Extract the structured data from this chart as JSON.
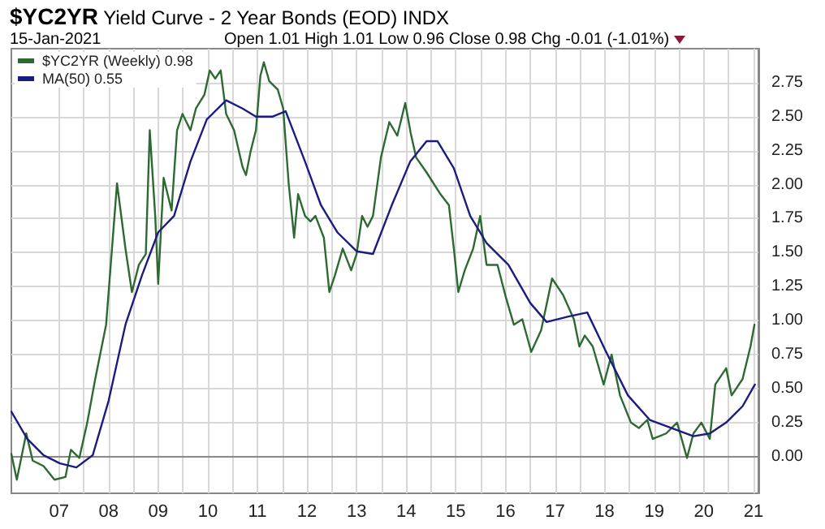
{
  "chart_data": {
    "type": "line",
    "title": "$YC2YR Yield Curve - 2 Year Bonds (EOD) INDX",
    "subtitle": "15-Jan-2021",
    "annotations": [
      "Open 1.01 High 1.01 Low 0.96 Close 0.98 Chg -0.01 (-1.01%)"
    ],
    "series": [
      {
        "name": "$YC2YR (Weekly) 0.98",
        "color": "#2d6a32",
        "x": [
          2006.04,
          2006.15,
          2006.34,
          2006.47,
          2006.69,
          2006.91,
          2007.13,
          2007.24,
          2007.41,
          2007.57,
          2007.73,
          2007.95,
          2008.06,
          2008.17,
          2008.34,
          2008.47,
          2008.61,
          2008.75,
          2008.83,
          2008.94,
          2009.0,
          2009.11,
          2009.27,
          2009.38,
          2009.49,
          2009.65,
          2009.76,
          2009.93,
          2010.04,
          2010.15,
          2010.26,
          2010.37,
          2010.53,
          2010.7,
          2010.77,
          2010.86,
          2010.97,
          2011.06,
          2011.13,
          2011.24,
          2011.41,
          2011.52,
          2011.63,
          2011.74,
          2011.82,
          2011.96,
          2012.07,
          2012.17,
          2012.34,
          2012.45,
          2012.56,
          2012.72,
          2012.89,
          2013.0,
          2013.11,
          2013.22,
          2013.33,
          2013.49,
          2013.66,
          2013.82,
          2013.98,
          2014.09,
          2014.2,
          2014.41,
          2014.69,
          2014.86,
          2014.96,
          2015.05,
          2015.18,
          2015.35,
          2015.49,
          2015.62,
          2015.84,
          2016.01,
          2016.17,
          2016.34,
          2016.52,
          2016.72,
          2016.94,
          2017.16,
          2017.38,
          2017.49,
          2017.6,
          2017.76,
          2017.98,
          2018.14,
          2018.31,
          2018.53,
          2018.69,
          2018.86,
          2018.97,
          2019.24,
          2019.46,
          2019.66,
          2019.79,
          2019.95,
          2020.12,
          2020.23,
          2020.45,
          2020.56,
          2020.78,
          2020.94,
          2021.02
        ],
        "values": [
          0.02,
          -0.17,
          0.17,
          -0.03,
          -0.07,
          -0.17,
          -0.15,
          0.05,
          -0.01,
          0.25,
          0.57,
          0.97,
          1.49,
          2.01,
          1.53,
          1.21,
          1.41,
          1.49,
          2.4,
          1.77,
          1.27,
          2.05,
          1.81,
          2.4,
          2.52,
          2.4,
          2.56,
          2.66,
          2.84,
          2.78,
          2.84,
          2.52,
          2.4,
          2.13,
          2.07,
          2.24,
          2.4,
          2.8,
          2.9,
          2.76,
          2.7,
          2.56,
          2.01,
          1.61,
          1.93,
          1.77,
          1.73,
          1.77,
          1.61,
          1.21,
          1.33,
          1.53,
          1.37,
          1.49,
          1.77,
          1.69,
          1.77,
          2.2,
          2.46,
          2.36,
          2.6,
          2.38,
          2.2,
          2.09,
          1.93,
          1.85,
          1.53,
          1.21,
          1.37,
          1.53,
          1.77,
          1.41,
          1.41,
          1.17,
          0.97,
          1.01,
          0.77,
          0.93,
          1.31,
          1.19,
          1.01,
          0.81,
          0.89,
          0.81,
          0.53,
          0.75,
          0.45,
          0.25,
          0.21,
          0.27,
          0.13,
          0.17,
          0.25,
          -0.01,
          0.17,
          0.25,
          0.13,
          0.53,
          0.65,
          0.45,
          0.57,
          0.81,
          0.97
        ]
      },
      {
        "name": "MA(50) 0.55",
        "color": "#1c1c80",
        "x": [
          2006.04,
          2006.36,
          2006.69,
          2007.02,
          2007.35,
          2007.68,
          2008.0,
          2008.34,
          2008.67,
          2009.0,
          2009.32,
          2009.65,
          2009.98,
          2010.37,
          2010.7,
          2010.97,
          2011.3,
          2011.57,
          2011.96,
          2012.28,
          2012.61,
          2013.0,
          2013.33,
          2013.71,
          2014.08,
          2014.41,
          2014.63,
          2014.96,
          2015.29,
          2015.62,
          2016.06,
          2016.5,
          2016.83,
          2017.27,
          2017.65,
          2018.03,
          2018.47,
          2018.91,
          2019.35,
          2019.79,
          2020.12,
          2020.45,
          2020.78,
          2021.03
        ],
        "values": [
          0.33,
          0.13,
          0.01,
          -0.05,
          -0.08,
          0.01,
          0.41,
          0.97,
          1.33,
          1.65,
          1.77,
          2.17,
          2.48,
          2.62,
          2.56,
          2.5,
          2.5,
          2.54,
          2.17,
          1.85,
          1.65,
          1.51,
          1.49,
          1.85,
          2.17,
          2.32,
          2.32,
          2.12,
          1.77,
          1.57,
          1.41,
          1.13,
          0.99,
          1.03,
          1.06,
          0.77,
          0.45,
          0.27,
          0.21,
          0.15,
          0.17,
          0.25,
          0.37,
          0.53
        ]
      }
    ],
    "xlim": [
      2006.04,
      2021.1
    ],
    "xticks": [
      {
        "value": 2007,
        "label": "07"
      },
      {
        "value": 2007.5,
        "label": null
      },
      {
        "value": 2008,
        "label": "08"
      },
      {
        "value": 2008.5,
        "label": null
      },
      {
        "value": 2009,
        "label": "09"
      },
      {
        "value": 2009.5,
        "label": null
      },
      {
        "value": 2010,
        "label": "10"
      },
      {
        "value": 2010.5,
        "label": null
      },
      {
        "value": 2011,
        "label": "11"
      },
      {
        "value": 2011.5,
        "label": null
      },
      {
        "value": 2012,
        "label": "12"
      },
      {
        "value": 2012.5,
        "label": null
      },
      {
        "value": 2013,
        "label": "13"
      },
      {
        "value": 2013.5,
        "label": null
      },
      {
        "value": 2014,
        "label": "14"
      },
      {
        "value": 2014.5,
        "label": null
      },
      {
        "value": 2015,
        "label": "15"
      },
      {
        "value": 2015.5,
        "label": null
      },
      {
        "value": 2016,
        "label": "16"
      },
      {
        "value": 2016.5,
        "label": null
      },
      {
        "value": 2017,
        "label": "17"
      },
      {
        "value": 2017.5,
        "label": null
      },
      {
        "value": 2018,
        "label": "18"
      },
      {
        "value": 2018.5,
        "label": null
      },
      {
        "value": 2019,
        "label": "19"
      },
      {
        "value": 2019.5,
        "label": null
      },
      {
        "value": 2020,
        "label": "20"
      },
      {
        "value": 2020.5,
        "label": null
      },
      {
        "value": 2021,
        "label": "21"
      }
    ],
    "ylim": [
      -0.27,
      3.0
    ],
    "yticks": [
      {
        "value": 0,
        "label": "0.00"
      },
      {
        "value": 0.25,
        "label": "0.25"
      },
      {
        "value": 0.5,
        "label": "0.50"
      },
      {
        "value": 0.75,
        "label": "0.75"
      },
      {
        "value": 1,
        "label": "1.00"
      },
      {
        "value": 1.25,
        "label": "1.25"
      },
      {
        "value": 1.5,
        "label": "1.50"
      },
      {
        "value": 1.75,
        "label": "1.75"
      },
      {
        "value": 2,
        "label": "2.00"
      },
      {
        "value": 2.25,
        "label": "2.25"
      },
      {
        "value": 2.5,
        "label": "2.50"
      },
      {
        "value": 2.75,
        "label": "2.75"
      }
    ],
    "grid": true,
    "legend": "top left",
    "marker": "none",
    "line_style": "solid"
  }
}
